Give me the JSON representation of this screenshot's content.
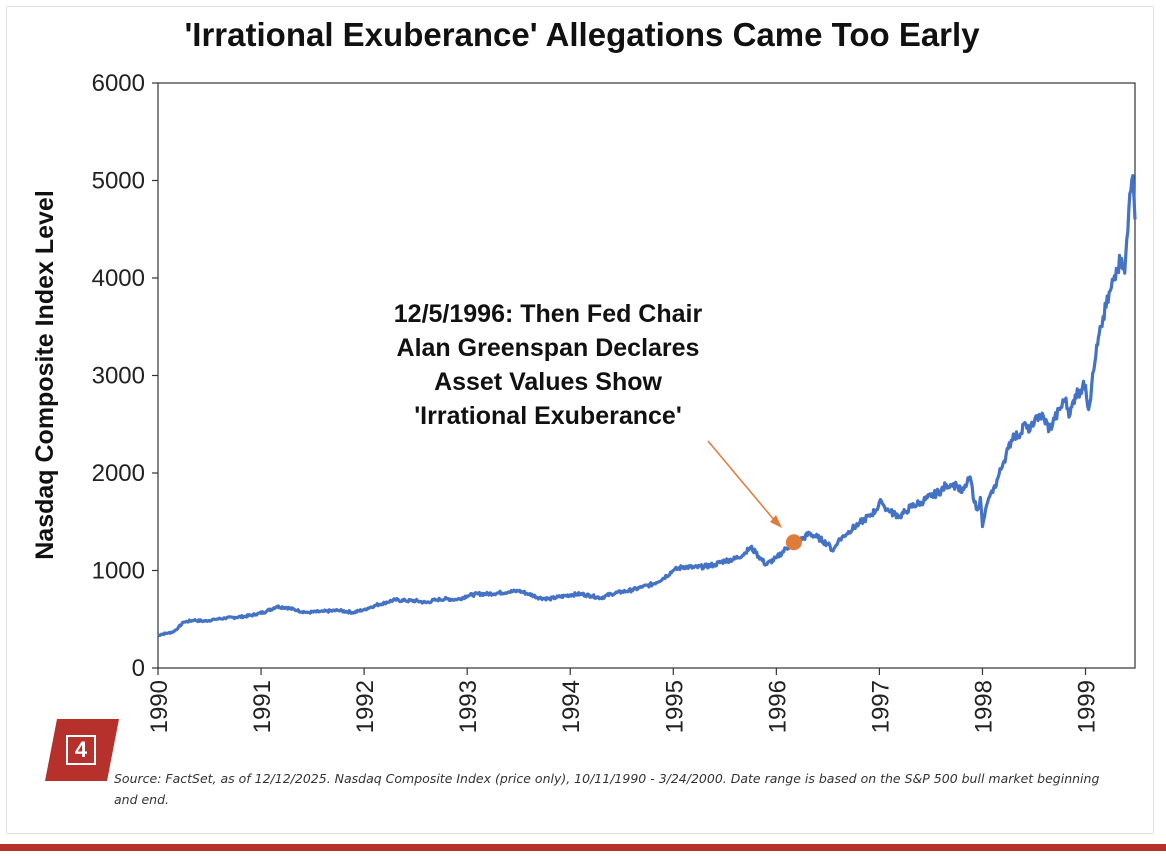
{
  "colors": {
    "line": "#4472C4",
    "marker": "#E07B39",
    "badge": "#B7312C",
    "bar": "#B7312C"
  },
  "badge": {
    "number": "4"
  },
  "source": "Source: FactSet, as of 12/12/2025. Nasdaq Composite Index (price only), 10/11/1990 - 3/24/2000. Date range is based on the S&P 500 bull market beginning and end.",
  "chart_data": {
    "type": "line",
    "title": "'Irrational Exuberance' Allegations Came Too Early",
    "xlabel": "",
    "ylabel": "Nasdaq Composite Index Level",
    "ylim": [
      0,
      6000
    ],
    "xlim": [
      1990,
      1999.48
    ],
    "yticks": [
      "0",
      "1000",
      "2000",
      "3000",
      "4000",
      "5000",
      "6000"
    ],
    "xticks": [
      "1990",
      "1991",
      "1992",
      "1993",
      "1994",
      "1995",
      "1996",
      "1997",
      "1998",
      "1999"
    ],
    "grid": false,
    "annotation": {
      "lines": [
        "12/5/1996: Then Fed Chair",
        "Alan Greenspan Declares",
        "Asset Values Show",
        "'Irrational Exuberance'"
      ],
      "x": 1996.17,
      "y": 1290
    },
    "series": [
      {
        "name": "Nasdaq Composite Index",
        "x": [
          1990.0,
          1990.03,
          1990.1,
          1990.15,
          1990.2,
          1990.25,
          1990.35,
          1990.45,
          1990.55,
          1990.65,
          1990.75,
          1990.85,
          1990.95,
          1991.05,
          1991.15,
          1991.25,
          1991.35,
          1991.45,
          1991.6,
          1991.75,
          1991.9,
          1992.0,
          1992.1,
          1992.2,
          1992.3,
          1992.4,
          1992.5,
          1992.6,
          1992.7,
          1992.8,
          1992.9,
          1993.0,
          1993.1,
          1993.2,
          1993.3,
          1993.4,
          1993.5,
          1993.6,
          1993.7,
          1993.8,
          1993.9,
          1994.0,
          1994.1,
          1994.2,
          1994.3,
          1994.4,
          1994.5,
          1994.6,
          1994.7,
          1994.8,
          1994.9,
          1995.0,
          1995.1,
          1995.2,
          1995.3,
          1995.4,
          1995.5,
          1995.6,
          1995.7,
          1995.75,
          1995.8,
          1995.9,
          1996.0,
          1996.1,
          1996.17,
          1996.25,
          1996.32,
          1996.4,
          1996.5,
          1996.55,
          1996.6,
          1996.7,
          1996.8,
          1996.9,
          1996.97,
          1997.02,
          1997.05,
          1997.1,
          1997.2,
          1997.25,
          1997.3,
          1997.4,
          1997.5,
          1997.6,
          1997.65,
          1997.7,
          1997.75,
          1997.8,
          1997.84,
          1997.88,
          1997.9,
          1997.92,
          1997.95,
          1997.98,
          1998.0,
          1998.02,
          1998.05,
          1998.1,
          1998.15,
          1998.2,
          1998.25,
          1998.3,
          1998.35,
          1998.4,
          1998.45,
          1998.5,
          1998.55,
          1998.6,
          1998.65,
          1998.7,
          1998.75,
          1998.8,
          1998.85,
          1998.9,
          1998.95,
          1999.0,
          1999.03,
          1999.06,
          1999.1,
          1999.15,
          1999.2,
          1999.25,
          1999.3,
          1999.35,
          1999.38,
          1999.4,
          1999.42,
          1999.44,
          1999.46,
          1999.48
        ],
        "values": [
          330,
          345,
          360,
          370,
          420,
          470,
          490,
          480,
          500,
          510,
          520,
          530,
          550,
          580,
          630,
          620,
          590,
          570,
          580,
          590,
          570,
          600,
          640,
          670,
          700,
          690,
          690,
          670,
          700,
          710,
          700,
          740,
          760,
          760,
          770,
          780,
          790,
          760,
          720,
          710,
          730,
          750,
          760,
          740,
          720,
          760,
          780,
          800,
          830,
          860,
          920,
          1000,
          1040,
          1030,
          1040,
          1060,
          1100,
          1120,
          1180,
          1240,
          1180,
          1060,
          1130,
          1230,
          1290,
          1320,
          1380,
          1340,
          1270,
          1200,
          1300,
          1400,
          1480,
          1560,
          1620,
          1710,
          1650,
          1600,
          1560,
          1600,
          1650,
          1700,
          1760,
          1820,
          1880,
          1880,
          1870,
          1800,
          1860,
          1960,
          1860,
          1700,
          1620,
          1750,
          1450,
          1550,
          1700,
          1800,
          1950,
          2100,
          2250,
          2400,
          2380,
          2500,
          2420,
          2500,
          2600,
          2550,
          2450,
          2550,
          2650,
          2750,
          2600,
          2800,
          2850,
          2900,
          2650,
          2900,
          3200,
          3500,
          3700,
          3900,
          4100,
          4200,
          4050,
          4400,
          4700,
          4900,
          5050,
          4600
        ]
      }
    ]
  }
}
